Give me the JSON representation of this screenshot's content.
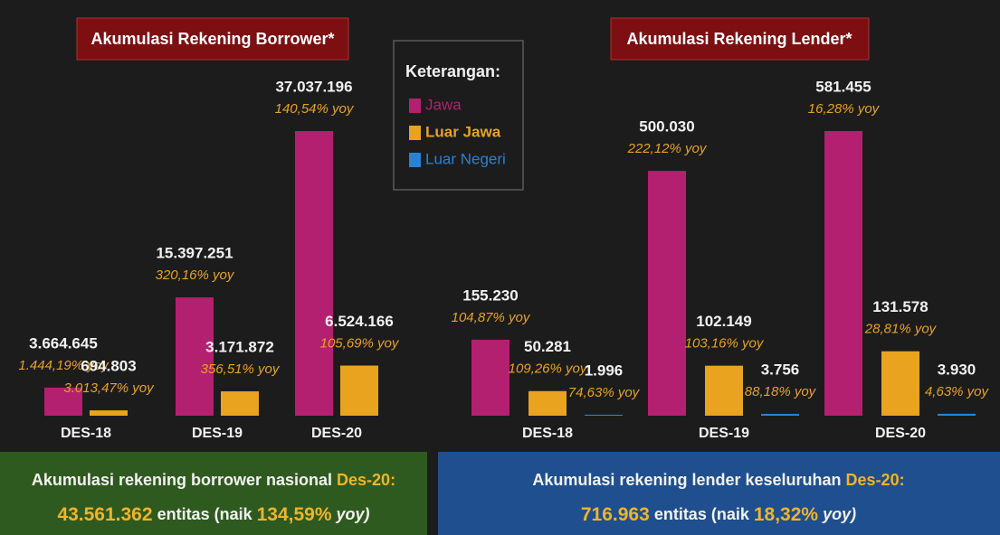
{
  "chart_data": [
    {
      "type": "bar",
      "title": "Akumulasi Rekening Borrower*",
      "categories": [
        "DES-18",
        "DES-19",
        "DES-20"
      ],
      "series": [
        {
          "color": "#b3206f",
          "values": [
            3664645,
            15397251,
            37037196
          ],
          "value_labels": [
            "3.664.645",
            "15.397.251",
            "37.037.196"
          ],
          "yoy_labels": [
            "1.444,19% yoy",
            "320,16% yoy",
            "140,54% yoy"
          ]
        },
        {
          "color": "#e9a31f",
          "values": [
            694803,
            3171872,
            6524166
          ],
          "value_labels": [
            "694.803",
            "3.171.872",
            "6.524.166"
          ],
          "yoy_labels": [
            "3.013,47% yoy",
            "356,51% yoy",
            "105,69% yoy"
          ]
        }
      ]
    },
    {
      "type": "bar",
      "title": "Akumulasi Rekening Lender*",
      "categories": [
        "DES-18",
        "DES-19",
        "DES-20"
      ],
      "series": [
        {
          "name": "Jawa",
          "color": "#b3206f",
          "values": [
            155230,
            500030,
            581455
          ],
          "value_labels": [
            "155.230",
            "500.030",
            "581.455"
          ],
          "yoy_labels": [
            "104,87% yoy",
            "222,12% yoy",
            "16,28% yoy"
          ]
        },
        {
          "name": "Luar Jawa",
          "color": "#e9a31f",
          "values": [
            50281,
            102149,
            131578
          ],
          "value_labels": [
            "50.281",
            "102.149",
            "131.578"
          ],
          "yoy_labels": [
            "109,26% yoy",
            "103,16% yoy",
            "28,81% yoy"
          ]
        },
        {
          "name": "Luar Negeri",
          "color": "#2a82d4",
          "values": [
            1996,
            3756,
            3930
          ],
          "value_labels": [
            "1.996",
            "3.756",
            "3.930"
          ],
          "yoy_labels": [
            "74,63% yoy",
            "88,18% yoy",
            "4,63% yoy"
          ]
        }
      ]
    }
  ],
  "legend": {
    "title": "Keterangan:"
  },
  "summary": [
    {
      "lead": "Akumulasi rekening borrower nasional",
      "date": "Des-20:",
      "total": "43.561.362",
      "text": "entitas (naik",
      "growth": "134,59%",
      "tail": "yoy)"
    },
    {
      "lead": "Akumulasi rekening lender keseluruhan",
      "date": "Des-20:",
      "total": "716.963",
      "text": "entitas (naik",
      "growth": "18,32%",
      "tail": "yoy)"
    }
  ]
}
